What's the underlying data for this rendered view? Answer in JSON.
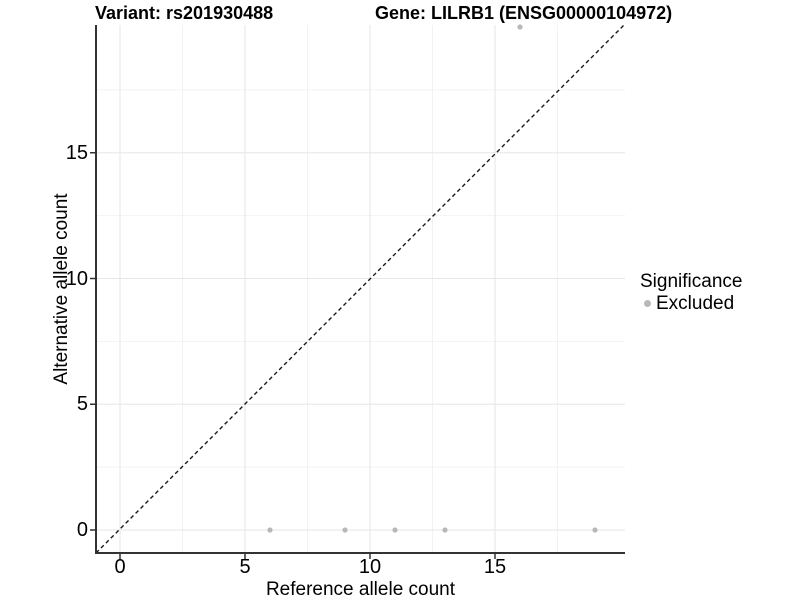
{
  "chart_data": {
    "type": "scatter",
    "variant_title": "Variant: rs201930488",
    "gene_title": "Gene: LILRB1 (ENSG00000104972)",
    "xlabel": "Reference allele count",
    "ylabel": "Alternative allele count",
    "xlim": [
      -1,
      20.2
    ],
    "ylim": [
      -1,
      20.2
    ],
    "x_ticks": [
      0,
      5,
      10,
      15
    ],
    "y_ticks": [
      0,
      5,
      10,
      15
    ],
    "x_minor_ticks": [
      2.5,
      7.5,
      12.5,
      17.5
    ],
    "y_minor_ticks": [
      2.5,
      7.5,
      12.5,
      17.5
    ],
    "grid": "major+minor",
    "legend_position": "right",
    "legend_title": "Significance",
    "series": [
      {
        "name": "Excluded",
        "color": "#b8b8b8",
        "points": [
          [
            6,
            0
          ],
          [
            9,
            0
          ],
          [
            11,
            0
          ],
          [
            13,
            0
          ],
          [
            16,
            20
          ],
          [
            19,
            0
          ]
        ]
      }
    ],
    "identity_line": {
      "style": "dashed",
      "color": "#1a1a1a",
      "equation": "y = x"
    }
  },
  "colors": {
    "background": "#ffffff",
    "grid_major": "#e6e6e6",
    "grid_minor": "#f2f2f2",
    "axis_line": "#333333",
    "text": "#000000",
    "point": "#b8b8b8"
  }
}
